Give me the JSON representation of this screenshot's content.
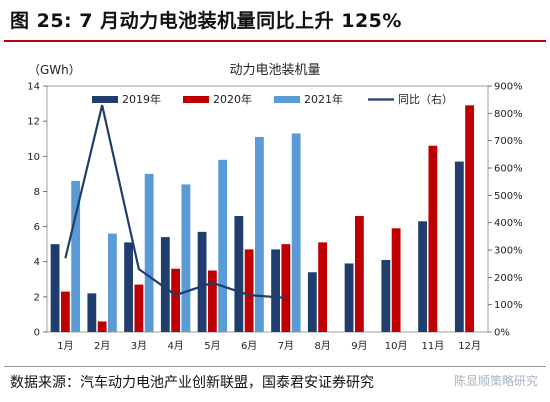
{
  "figure_title": "图 25:  7 月动力电池装机量同比上升 125%",
  "source": "数据来源：汽车动力电池产业创新联盟，国泰君安证券研究",
  "watermark": "陈显顺策略研究",
  "colors": {
    "s2019": "#1f3e6e",
    "s2020": "#c00000",
    "s2021": "#5b9bd5",
    "yoy": "#1f3e6e",
    "title_rule": "#c00000"
  },
  "chart_data": {
    "type": "bar",
    "title": "动力电池装机量",
    "ylabel_left": "（GWh）",
    "ylim_left": [
      0,
      14
    ],
    "yticks_left": [
      0,
      2,
      4,
      6,
      8,
      10,
      12,
      14
    ],
    "ylim_right": [
      0,
      900
    ],
    "yticks_right": [
      "0%",
      "100%",
      "200%",
      "300%",
      "400%",
      "500%",
      "600%",
      "700%",
      "800%",
      "900%"
    ],
    "categories": [
      "1月",
      "2月",
      "3月",
      "4月",
      "5月",
      "6月",
      "7月",
      "8月",
      "9月",
      "10月",
      "11月",
      "12月"
    ],
    "legend_position": "top",
    "series": [
      {
        "name": "2019年",
        "values": [
          5.0,
          2.2,
          5.1,
          5.4,
          5.7,
          6.6,
          4.7,
          3.4,
          3.9,
          4.1,
          6.3,
          9.7
        ]
      },
      {
        "name": "2020年",
        "values": [
          2.3,
          0.6,
          2.7,
          3.6,
          3.5,
          4.7,
          5.0,
          5.1,
          6.6,
          5.9,
          10.6,
          12.9
        ]
      },
      {
        "name": "2021年",
        "values": [
          8.6,
          5.6,
          9.0,
          8.4,
          9.8,
          11.1,
          11.3,
          null,
          null,
          null,
          null,
          null
        ]
      }
    ],
    "line_series": {
      "name": "同比（右）",
      "axis": "right",
      "values": [
        270,
        830,
        230,
        135,
        180,
        135,
        125,
        null,
        null,
        null,
        null,
        null
      ]
    }
  }
}
